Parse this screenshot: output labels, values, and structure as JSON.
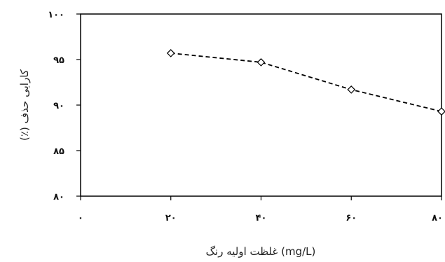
{
  "chart_data": {
    "type": "line",
    "title": "",
    "xlabel": "(mg/L) غلظت اولیه رنگ",
    "ylabel": "کارایی حذف (٪)",
    "x_tick_labels": [
      "۰",
      "۲۰",
      "۴۰",
      "۶۰",
      "۸۰"
    ],
    "y_tick_labels": [
      "۸۰",
      "۸۵",
      "۹۰",
      "۹۵",
      "۱۰۰"
    ],
    "x_ticks": [
      0,
      20,
      40,
      60,
      80
    ],
    "y_ticks": [
      80,
      85,
      90,
      95,
      100
    ],
    "xlim": [
      0,
      80
    ],
    "ylim": [
      80,
      100
    ],
    "grid": false,
    "legend": "none",
    "series": [
      {
        "marker": "diamond",
        "line_style": "dashed",
        "color": "#000000",
        "x": [
          20,
          40,
          60,
          80
        ],
        "y": [
          95.7,
          94.7,
          91.7,
          89.3
        ]
      }
    ]
  }
}
